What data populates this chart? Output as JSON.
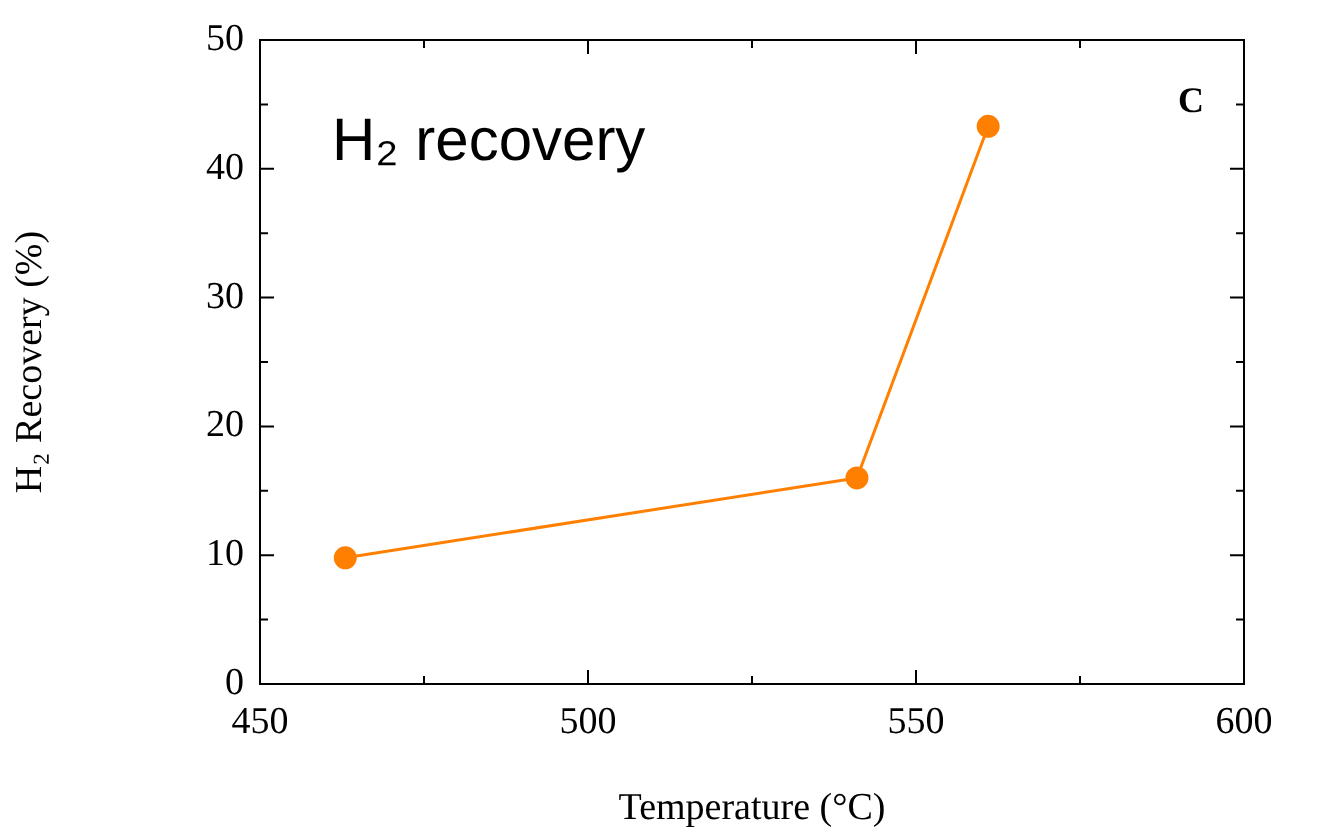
{
  "chart_data": {
    "type": "line",
    "xlabel": "Temperature (°C)",
    "ylabel": "H₂ Recovery (%)",
    "x": [
      463,
      541,
      561
    ],
    "series": [
      {
        "color": "#ff8000",
        "values": [
          9.8,
          16.0,
          43.3
        ]
      }
    ],
    "xlim": [
      450,
      600
    ],
    "xticks": [
      450,
      {
        "value": 475,
        "label": null
      },
      500,
      {
        "value": 525,
        "label": null
      },
      550,
      {
        "value": 575,
        "label": null
      },
      600
    ],
    "ylim": [
      0,
      50
    ],
    "yticks": [
      0,
      {
        "value": 5,
        "label": null
      },
      10,
      {
        "value": 15,
        "label": null
      },
      20,
      {
        "value": 25,
        "label": null
      },
      30,
      {
        "value": 35,
        "label": null
      },
      40,
      {
        "value": 45,
        "label": null
      },
      50
    ],
    "marker": "circle",
    "line_style": "solid",
    "grid": false,
    "legend": false,
    "annotations": [
      "H₂ recovery",
      "C"
    ]
  }
}
